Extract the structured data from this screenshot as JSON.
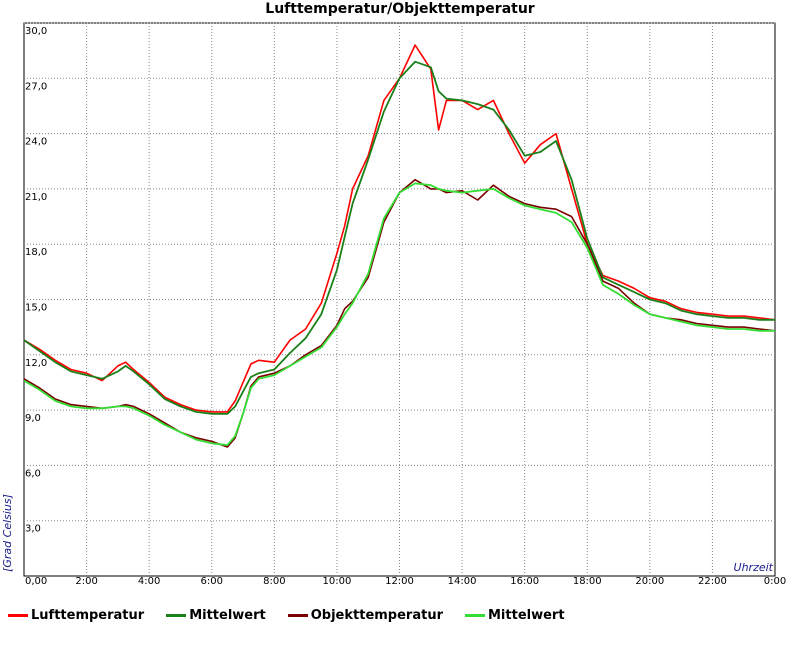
{
  "chart_data": {
    "type": "line",
    "title": "Lufttemperatur/Objekttemperatur",
    "xlabel": "Uhrzeit",
    "ylabel": "[Grad Celsius]",
    "x_tick_labels": [
      "0,00",
      "2:00",
      "4:00",
      "6:00",
      "8:00",
      "10:00",
      "12:00",
      "14:00",
      "16:00",
      "18:00",
      "20:00",
      "22:00",
      "0:00"
    ],
    "y_tick_labels": [
      "3,0",
      "6,0",
      "9,0",
      "12,0",
      "15,0",
      "18,0",
      "21,0",
      "24,0",
      "27,0",
      "30,0"
    ],
    "xlim": [
      0,
      24
    ],
    "ylim": [
      0,
      30
    ],
    "grid": true,
    "legend_position": "bottom",
    "x": [
      0,
      0.5,
      1,
      1.5,
      2,
      2.5,
      3,
      3.25,
      3.5,
      4,
      4.5,
      5,
      5.5,
      6,
      6.5,
      6.75,
      7,
      7.25,
      7.5,
      8,
      8.5,
      9,
      9.5,
      10,
      10.25,
      10.5,
      11,
      11.5,
      12,
      12.5,
      13,
      13.25,
      13.5,
      14,
      14.5,
      15,
      15.5,
      16,
      16.5,
      17,
      17.5,
      18,
      18.5,
      19,
      19.5,
      20,
      20.5,
      21,
      21.5,
      22,
      22.5,
      23,
      23.5,
      24
    ],
    "series": [
      {
        "name": "Lufttemperatur",
        "color": "#ff0000",
        "values": [
          12.8,
          12.3,
          11.7,
          11.2,
          11.0,
          10.6,
          11.4,
          11.6,
          11.2,
          10.5,
          9.7,
          9.3,
          9.0,
          8.9,
          8.9,
          9.5,
          10.5,
          11.5,
          11.7,
          11.6,
          12.8,
          13.4,
          14.8,
          17.5,
          19.0,
          21.0,
          22.8,
          25.8,
          27.0,
          28.8,
          27.5,
          24.2,
          25.8,
          25.8,
          25.3,
          25.8,
          24.0,
          22.4,
          23.4,
          24.0,
          21.0,
          18.0,
          16.3,
          16.0,
          15.6,
          15.1,
          14.9,
          14.5,
          14.3,
          14.2,
          14.1,
          14.1,
          14.0,
          13.9
        ]
      },
      {
        "name": "Mittelwert",
        "color": "#1a801a",
        "values": [
          12.8,
          12.2,
          11.6,
          11.1,
          10.9,
          10.7,
          11.1,
          11.4,
          11.1,
          10.4,
          9.6,
          9.2,
          8.9,
          8.8,
          8.8,
          9.2,
          10.0,
          10.8,
          11.0,
          11.2,
          12.1,
          12.9,
          14.2,
          16.6,
          18.4,
          20.2,
          22.6,
          25.2,
          27.0,
          27.9,
          27.6,
          26.3,
          25.9,
          25.8,
          25.6,
          25.3,
          24.2,
          22.8,
          23.0,
          23.6,
          21.5,
          18.3,
          16.2,
          15.8,
          15.4,
          15.0,
          14.8,
          14.4,
          14.2,
          14.1,
          14.0,
          14.0,
          13.9,
          13.9
        ]
      },
      {
        "name": "Objekttemperatur",
        "color": "#7a0000",
        "values": [
          10.7,
          10.2,
          9.6,
          9.3,
          9.2,
          9.1,
          9.2,
          9.3,
          9.2,
          8.8,
          8.3,
          7.8,
          7.5,
          7.3,
          7.0,
          7.5,
          8.8,
          10.3,
          10.8,
          11.0,
          11.4,
          12.0,
          12.5,
          13.6,
          14.5,
          14.9,
          16.2,
          19.2,
          20.8,
          21.5,
          21.0,
          21.0,
          20.8,
          20.9,
          20.4,
          21.2,
          20.6,
          20.2,
          20.0,
          19.9,
          19.5,
          18.0,
          16.0,
          15.6,
          14.8,
          14.2,
          14.0,
          13.9,
          13.7,
          13.6,
          13.5,
          13.5,
          13.4,
          13.3
        ]
      },
      {
        "name": "Mittelwert",
        "color": "#33dd33",
        "values": [
          10.6,
          10.1,
          9.5,
          9.2,
          9.1,
          9.1,
          9.2,
          9.2,
          9.1,
          8.7,
          8.2,
          7.8,
          7.4,
          7.2,
          7.1,
          7.6,
          8.8,
          10.2,
          10.7,
          10.9,
          11.4,
          11.9,
          12.4,
          13.5,
          14.2,
          14.8,
          16.4,
          19.4,
          20.8,
          21.3,
          21.2,
          21.0,
          20.9,
          20.8,
          20.9,
          21.0,
          20.5,
          20.1,
          19.9,
          19.7,
          19.2,
          17.8,
          15.8,
          15.3,
          14.7,
          14.2,
          14.0,
          13.8,
          13.6,
          13.5,
          13.4,
          13.4,
          13.3,
          13.3
        ]
      }
    ]
  }
}
